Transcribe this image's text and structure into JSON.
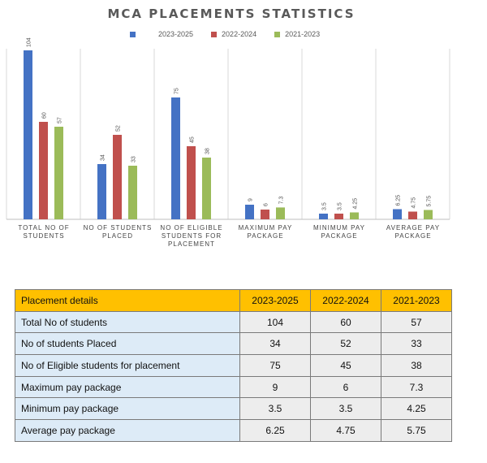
{
  "chart_data": {
    "type": "bar",
    "title": "MCA PLACEMENTS STATISTICS",
    "categories": [
      "TOTAL NO OF STUDENTS",
      "NO OF STUDENTS PLACED",
      "NO OF ELIGIBLE STUDENTS FOR PLACEMENT",
      "MAXIMUM PAY PACKAGE",
      "MINIMUM PAY PACKAGE",
      "AVERAGE PAY PACKAGE"
    ],
    "category_lines": [
      [
        "TOTAL NO OF",
        "STUDENTS"
      ],
      [
        "NO OF STUDENTS",
        "PLACED"
      ],
      [
        "NO OF ELIGIBLE",
        "STUDENTS FOR",
        "PLACEMENT"
      ],
      [
        "MAXIMUM PAY",
        "PACKAGE"
      ],
      [
        "MINIMUM PAY",
        "PACKAGE"
      ],
      [
        "AVERAGE PAY",
        "PACKAGE"
      ]
    ],
    "series": [
      {
        "name": "2023-2025",
        "color": "#4472c4",
        "values": [
          104,
          34,
          75,
          9,
          3.5,
          6.25
        ],
        "labels": [
          "104",
          "34",
          "75",
          "9",
          "3.5",
          "6.25"
        ]
      },
      {
        "name": "2022-2024",
        "color": "#c0504d",
        "values": [
          60,
          52,
          45,
          6,
          3.5,
          4.75
        ],
        "labels": [
          "60",
          "52",
          "45",
          "6",
          "3.5",
          "4.75"
        ]
      },
      {
        "name": "2021-2023",
        "color": "#9bbb59",
        "values": [
          57,
          33,
          38,
          7.3,
          4.25,
          5.75
        ],
        "labels": [
          "57",
          "33",
          "38",
          "7.3",
          "4.25",
          "5.75"
        ]
      }
    ],
    "ylim": [
      0,
      115
    ],
    "legend": "top",
    "grid": false
  },
  "table": {
    "headers": [
      "Placement details",
      "2023-2025",
      "2022-2024",
      "2021-2023"
    ],
    "rows": [
      [
        "Total No of students",
        "104",
        "60",
        "57"
      ],
      [
        "No of students Placed",
        "34",
        "52",
        "33"
      ],
      [
        "No of Eligible students for placement",
        "75",
        "45",
        "38"
      ],
      [
        "Maximum pay package",
        "9",
        "6",
        "7.3"
      ],
      [
        "Minimum pay package",
        "3.5",
        "3.5",
        "4.25"
      ],
      [
        "Average pay package",
        "6.25",
        "4.75",
        "5.75"
      ]
    ]
  }
}
